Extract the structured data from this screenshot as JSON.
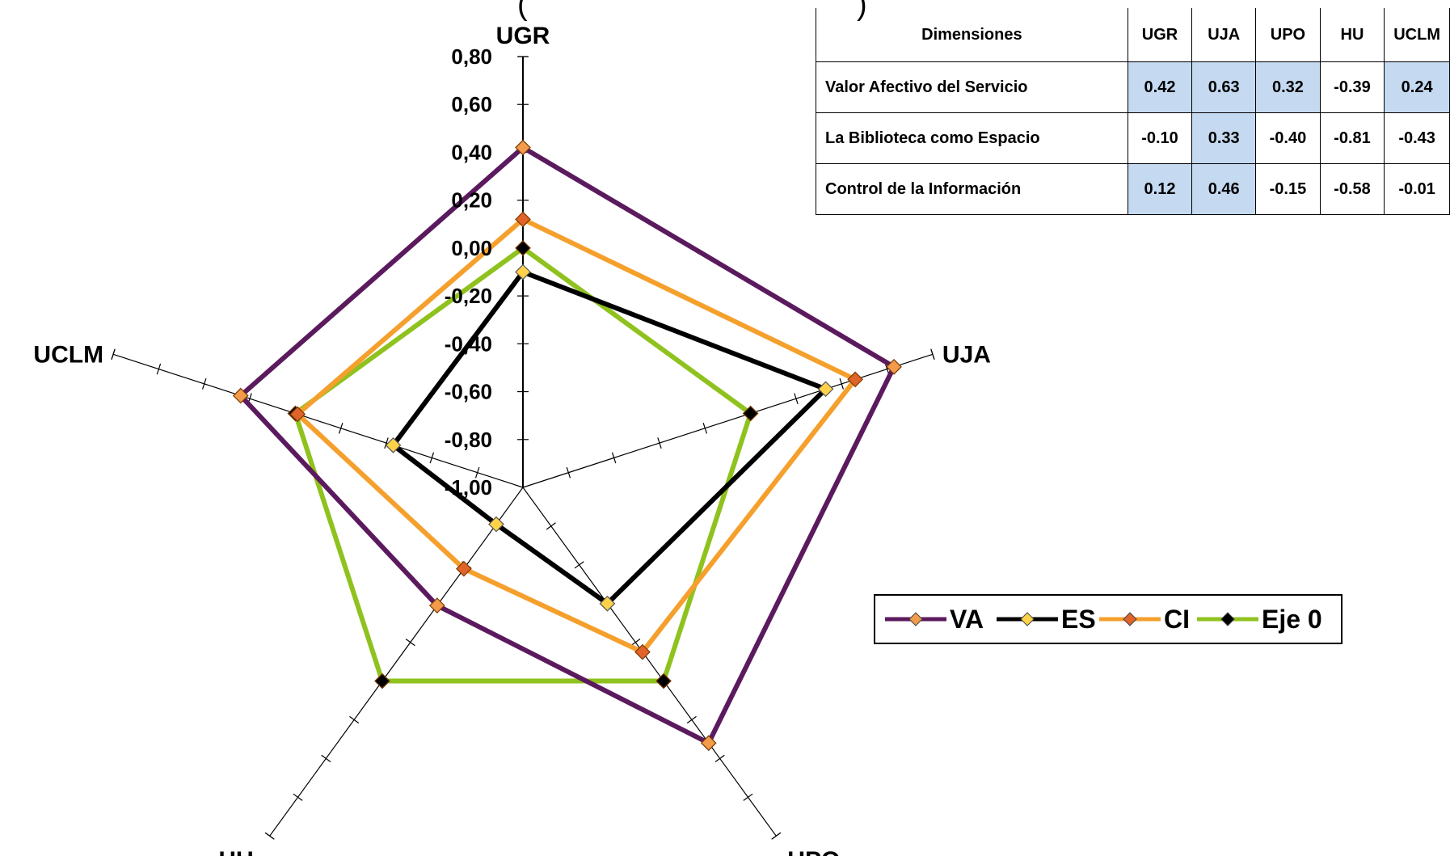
{
  "title_fragment": {
    "left": "(",
    "right": ")"
  },
  "chart_data": {
    "type": "radar",
    "axes": [
      "UGR",
      "UJA",
      "UPO",
      "HU",
      "UCLM"
    ],
    "rlim": [
      -1.0,
      0.8
    ],
    "tick_labels": [
      "0,80",
      "0,60",
      "0,40",
      "0,20",
      "0,00",
      "-0,20",
      "-0,40",
      "-0,60",
      "-0,80",
      "-1,00"
    ],
    "tick_values": [
      0.8,
      0.6,
      0.4,
      0.2,
      0.0,
      -0.2,
      -0.4,
      -0.6,
      -0.8,
      -1.0
    ],
    "series": [
      {
        "name": "VA",
        "line_color": "#5b1a5e",
        "marker_color": "#f29b4a",
        "values": [
          0.42,
          0.63,
          0.32,
          -0.39,
          0.24
        ]
      },
      {
        "name": "ES",
        "line_color": "#000000",
        "marker_color": "#ffd24a",
        "values": [
          -0.1,
          0.33,
          -0.4,
          -0.81,
          -0.43
        ]
      },
      {
        "name": "CI",
        "line_color": "#f5a02d",
        "marker_color": "#e0632a",
        "values": [
          0.12,
          0.46,
          -0.15,
          -0.58,
          -0.01
        ]
      },
      {
        "name": "Eje 0",
        "line_color": "#8fc21e",
        "marker_color": "#000000",
        "values": [
          0,
          0,
          0,
          0,
          0
        ]
      }
    ],
    "legend_position": "right"
  },
  "table": {
    "headers": [
      "Dimensiones",
      "UGR",
      "UJA",
      "UPO",
      "HU",
      "UCLM"
    ],
    "rows": [
      {
        "label": "Valor Afectivo del Servicio",
        "values": [
          "0.42",
          "0.63",
          "0.32",
          "-0.39",
          "0.24"
        ],
        "highlight": [
          true,
          true,
          true,
          false,
          true
        ]
      },
      {
        "label": "La Biblioteca como Espacio",
        "values": [
          "-0.10",
          "0.33",
          "-0.40",
          "-0.81",
          "-0.43"
        ],
        "highlight": [
          false,
          true,
          false,
          false,
          false
        ]
      },
      {
        "label": "Control de la Información",
        "values": [
          "0.12",
          "0.46",
          "-0.15",
          "-0.58",
          "-0.01"
        ],
        "highlight": [
          true,
          true,
          false,
          false,
          false
        ]
      }
    ],
    "highlight_color": "#c5d9f1"
  }
}
